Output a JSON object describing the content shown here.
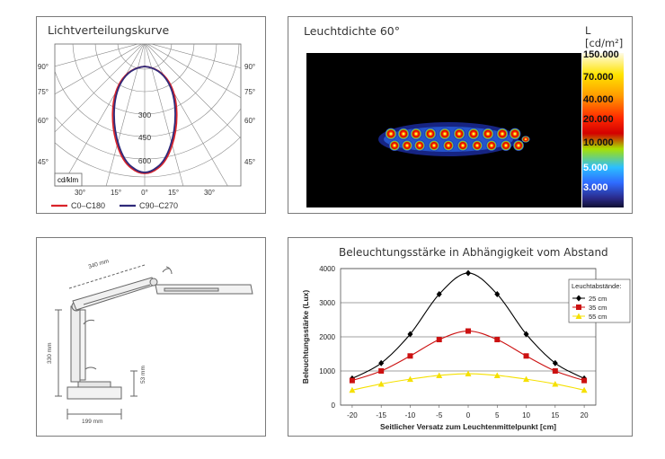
{
  "polar": {
    "title": "Lichtverteilungskurve",
    "unit": "cd/klm",
    "left_angles": [
      "90°",
      "75°",
      "60°",
      "45°"
    ],
    "right_angles": [
      "90°",
      "75°",
      "60°",
      "45°"
    ],
    "bottom_angles": [
      "30°",
      "15°",
      "0°",
      "15°",
      "30°"
    ],
    "radial_values": [
      "300",
      "450",
      "600"
    ],
    "legend": [
      {
        "label": "C0–C180",
        "color": "#d9232a"
      },
      {
        "label": "C90–C270",
        "color": "#2f2a7a"
      }
    ]
  },
  "luminance": {
    "title": "Leuchtdichte 60°",
    "unit": "L [cd/m²]",
    "scale": [
      {
        "label": "150.000",
        "color": "#ffffff"
      },
      {
        "label": "70.000",
        "color": "#ffb300"
      },
      {
        "label": "40.000",
        "color": "#ff5a00"
      },
      {
        "label": "20.000",
        "color": "#e00000"
      },
      {
        "label": "10.000",
        "color": "#b8e000"
      },
      {
        "label": "5.000",
        "color": "#2f76ff"
      },
      {
        "label": "3.000",
        "color": "#2a2a8a"
      }
    ]
  },
  "dims": {
    "arm": "340 mm",
    "height": "330 mm",
    "base_h": "53 mm",
    "base_w": "199 mm"
  },
  "chart_data": {
    "type": "line",
    "title": "Beleuchtungsstärke in Abhängigkeit vom Abstand",
    "xlabel": "Seitlicher Versatz zum Leuchtenmittelpunkt [cm]",
    "ylabel": "Beleuchtungsstärke (Lux)",
    "x": [
      -20,
      -15,
      -10,
      -5,
      0,
      5,
      10,
      15,
      20
    ],
    "xticks": [
      "-20",
      "-15",
      "-10",
      "-5",
      "0",
      "5",
      "10",
      "15",
      "20"
    ],
    "yticks": [
      "0",
      "1000",
      "2000",
      "3000",
      "4000"
    ],
    "ylim": [
      0,
      4000
    ],
    "xlim": [
      -22,
      22
    ],
    "grid": true,
    "legend_title": "Leuchtabstände:",
    "legend_position": "top-right",
    "series": [
      {
        "name": "25 cm",
        "color": "#000000",
        "marker": "diamond",
        "values": [
          780,
          1230,
          2080,
          3250,
          3870,
          3250,
          2080,
          1230,
          780
        ]
      },
      {
        "name": "35 cm",
        "color": "#cc1111",
        "marker": "square",
        "values": [
          720,
          1000,
          1440,
          1920,
          2170,
          1920,
          1440,
          1000,
          720
        ]
      },
      {
        "name": "55 cm",
        "color": "#f5e000",
        "marker": "triangle",
        "values": [
          440,
          620,
          760,
          870,
          920,
          870,
          760,
          620,
          440
        ]
      }
    ]
  }
}
